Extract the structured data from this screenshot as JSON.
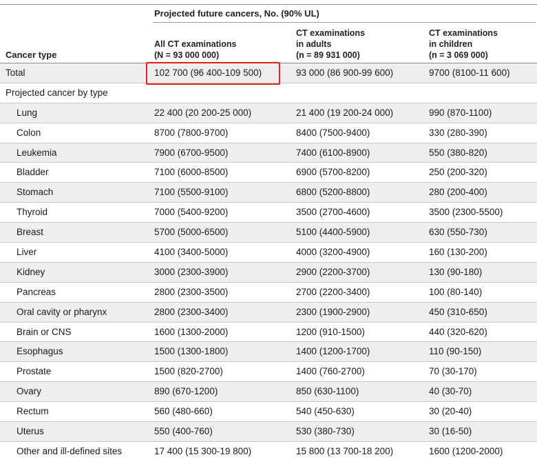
{
  "header": {
    "super_label": "Projected future cancers, No. (90% UL)",
    "cancer_type_label": "Cancer type",
    "columns": [
      {
        "line1": "All CT examinations",
        "line2": "(N = 93 000 000)",
        "line3": ""
      },
      {
        "line1": "CT examinations",
        "line2": "in adults",
        "line3": "(n = 89 931 000)"
      },
      {
        "line1": "CT examinations",
        "line2": "in children",
        "line3": "(n = 3 069 000)"
      }
    ]
  },
  "rows": [
    {
      "label": "Total",
      "all": "102 700 (96 400-109 500)",
      "adults": "93 000 (86 900-99 600)",
      "children": "9700 (8100-11 600)"
    },
    {
      "label": "Projected cancer by type",
      "all": "",
      "adults": "",
      "children": ""
    },
    {
      "label": "Lung",
      "all": "22 400 (20 200-25 000)",
      "adults": "21 400 (19 200-24 000)",
      "children": "990 (870-1100)"
    },
    {
      "label": "Colon",
      "all": "8700 (7800-9700)",
      "adults": "8400 (7500-9400)",
      "children": "330 (280-390)"
    },
    {
      "label": "Leukemia",
      "all": "7900 (6700-9500)",
      "adults": "7400 (6100-8900)",
      "children": "550 (380-820)"
    },
    {
      "label": "Bladder",
      "all": "7100 (6000-8500)",
      "adults": "6900 (5700-8200)",
      "children": "250 (200-320)"
    },
    {
      "label": "Stomach",
      "all": "7100 (5500-9100)",
      "adults": "6800 (5200-8800)",
      "children": "280 (200-400)"
    },
    {
      "label": "Thyroid",
      "all": "7000 (5400-9200)",
      "adults": "3500 (2700-4600)",
      "children": "3500 (2300-5500)"
    },
    {
      "label": "Breast",
      "all": "5700 (5000-6500)",
      "adults": "5100 (4400-5900)",
      "children": "630 (550-730)"
    },
    {
      "label": "Liver",
      "all": "4100 (3400-5000)",
      "adults": "4000 (3200-4900)",
      "children": "160 (130-200)"
    },
    {
      "label": "Kidney",
      "all": "3000 (2300-3900)",
      "adults": "2900 (2200-3700)",
      "children": "130 (90-180)"
    },
    {
      "label": "Pancreas",
      "all": "2800 (2300-3500)",
      "adults": "2700 (2200-3400)",
      "children": "100 (80-140)"
    },
    {
      "label": "Oral cavity or pharynx",
      "all": "2800 (2300-3400)",
      "adults": "2300 (1900-2900)",
      "children": "450 (310-650)"
    },
    {
      "label": "Brain or CNS",
      "all": "1600 (1300-2000)",
      "adults": "1200 (910-1500)",
      "children": "440 (320-620)"
    },
    {
      "label": "Esophagus",
      "all": "1500 (1300-1800)",
      "adults": "1400 (1200-1700)",
      "children": "110 (90-150)"
    },
    {
      "label": "Prostate",
      "all": "1500 (820-2700)",
      "adults": "1400 (760-2700)",
      "children": "70 (30-170)"
    },
    {
      "label": "Ovary",
      "all": "890 (670-1200)",
      "adults": "850 (630-1100)",
      "children": "40 (30-70)"
    },
    {
      "label": "Rectum",
      "all": "560 (480-660)",
      "adults": "540 (450-630)",
      "children": "30 (20-40)"
    },
    {
      "label": "Uterus",
      "all": "550 (400-760)",
      "adults": "530 (380-730)",
      "children": "30 (16-50)"
    },
    {
      "label": "Other and ill-defined sites",
      "all": "17 400 (15 300-19 800)",
      "adults": "15 800 (13 700-18 200)",
      "children": "1600 (1200-2000)"
    }
  ],
  "colors": {
    "highlight": "#e52222",
    "shade": "#eeeeee"
  }
}
